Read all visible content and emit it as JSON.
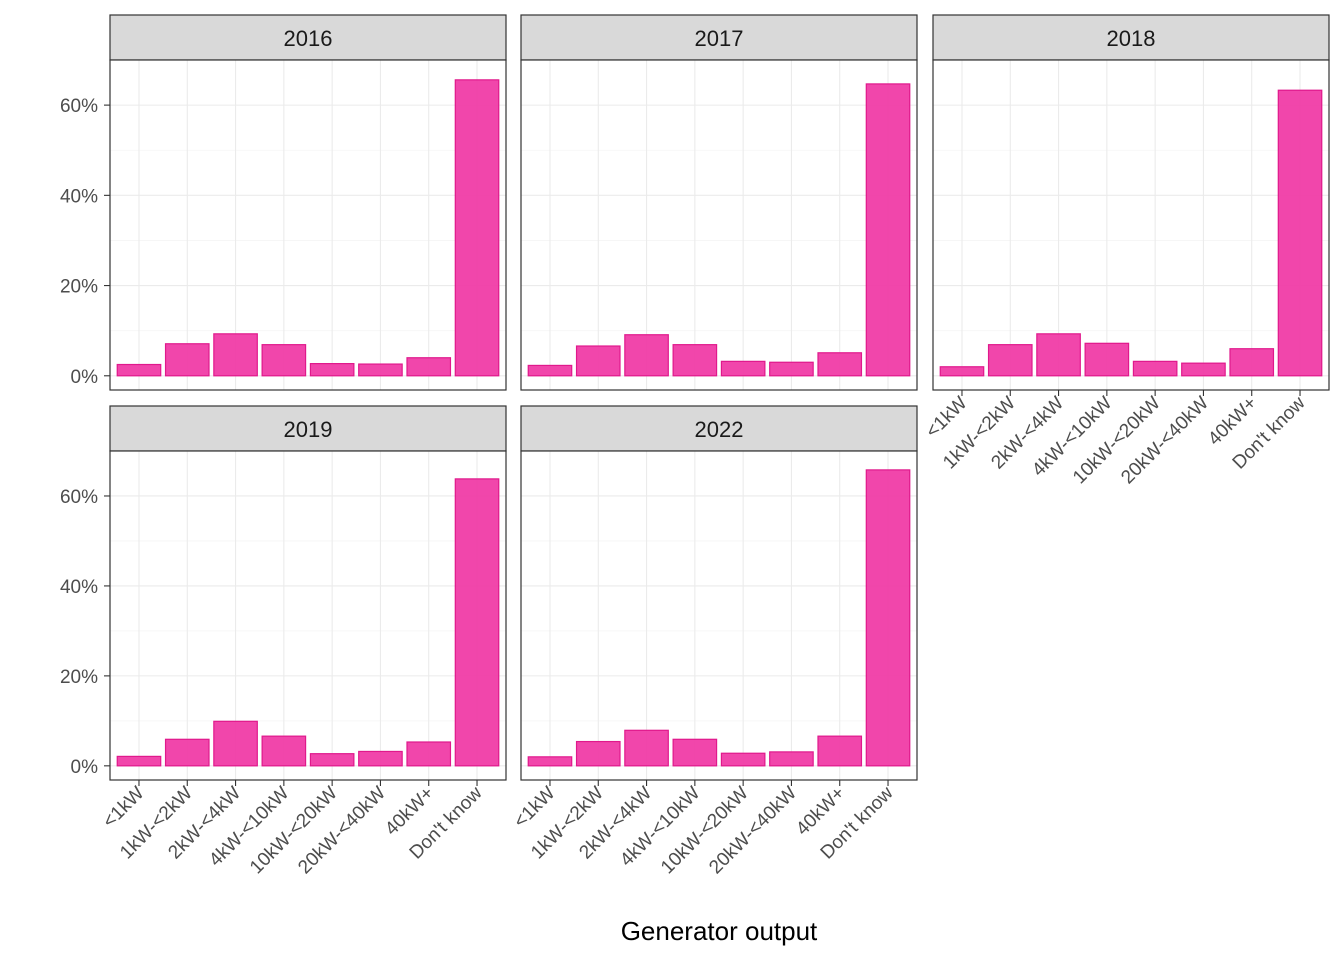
{
  "chart_data": {
    "type": "bar",
    "xlabel": "Generator output",
    "ylabel": "",
    "ylim": [
      0,
      70
    ],
    "y_ticks": [
      0,
      20,
      40,
      60
    ],
    "y_tick_labels": [
      "0%",
      "20%",
      "40%",
      "60%"
    ],
    "grid": true,
    "colors": {
      "bar_fill": "#f03ca6",
      "bar_stroke": "#e0198c",
      "strip_fill": "#d9d9d9"
    },
    "categories": [
      "<1kW",
      "1kW-<2kW",
      "2kW-<4kW",
      "4kW-<10kW",
      "10kW-<20kW",
      "20kW-<40kW",
      "40kW+",
      "Don't know"
    ],
    "panels": [
      {
        "label": "2016",
        "values": [
          2.5,
          7.1,
          9.3,
          6.9,
          2.7,
          2.6,
          4.0,
          65.6
        ]
      },
      {
        "label": "2017",
        "values": [
          2.3,
          6.6,
          9.1,
          6.9,
          3.2,
          3.0,
          5.1,
          64.7
        ]
      },
      {
        "label": "2018",
        "values": [
          2.0,
          6.9,
          9.3,
          7.2,
          3.2,
          2.8,
          6.0,
          63.3
        ]
      },
      {
        "label": "2019",
        "values": [
          2.1,
          5.9,
          9.9,
          6.6,
          2.7,
          3.2,
          5.3,
          63.8
        ]
      },
      {
        "label": "2022",
        "values": [
          2.0,
          5.4,
          7.9,
          5.9,
          2.8,
          3.1,
          6.6,
          65.8
        ]
      }
    ]
  }
}
